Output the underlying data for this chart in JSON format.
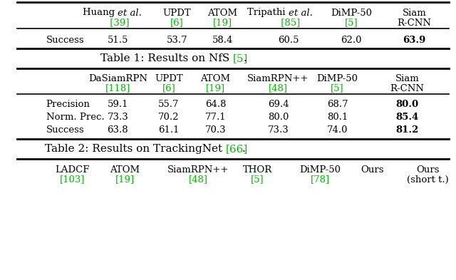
{
  "title1": "Table 1: Results on NfS ",
  "title1_ref": "[5]",
  "title2": "Table 2: Results on TrackingNet ",
  "title2_ref": "[66]",
  "table1": {
    "col_headers": [
      [
        "Huang ",
        "et al.",
        " [39]"
      ],
      [
        "UPDT",
        "[6]"
      ],
      [
        "ATOM",
        "[19]"
      ],
      [
        "Tripathi ",
        "et al.",
        " [85]"
      ],
      [
        "DiMP-50",
        "[5]"
      ],
      [
        "Siam",
        "R-CNN"
      ]
    ],
    "rows": [
      [
        "Success",
        "51.5",
        "53.7",
        "58.4",
        "60.5",
        "62.0",
        "63.9"
      ]
    ],
    "bold_last": true
  },
  "table2": {
    "col_headers": [
      [
        "DaSiamRPN",
        "[118]"
      ],
      [
        "UPDT",
        "[6]"
      ],
      [
        "ATOM",
        "[19]"
      ],
      [
        "SiamRPN++",
        "[48]"
      ],
      [
        "DiMP-50",
        "[5]"
      ],
      [
        "Siam",
        "R-CNN"
      ]
    ],
    "rows": [
      [
        "Precision",
        "59.1",
        "55.7",
        "64.8",
        "69.4",
        "68.7",
        "80.0"
      ],
      [
        "Norm. Prec.",
        "73.3",
        "70.2",
        "77.1",
        "80.0",
        "80.1",
        "85.4"
      ],
      [
        "Success",
        "63.8",
        "61.1",
        "70.3",
        "73.3",
        "74.0",
        "81.2"
      ]
    ],
    "bold_last": true
  },
  "table3_partial": {
    "col_headers": [
      [
        "LADCF",
        "[103]"
      ],
      [
        "ATOM",
        "[19]"
      ],
      [
        "SiamRPN++",
        "[48]"
      ],
      [
        "THOR",
        "[5]"
      ],
      [
        "DiMP-50",
        "[78]"
      ],
      [
        "Ours",
        ""
      ],
      [
        "Ours",
        "(short t.)"
      ]
    ]
  },
  "green_color": "#00BB00",
  "black_color": "#000000",
  "bg_color": "#ffffff",
  "line_color": "#000000",
  "font_size_header": 9.5,
  "font_size_data": 9.5,
  "font_size_caption": 11
}
